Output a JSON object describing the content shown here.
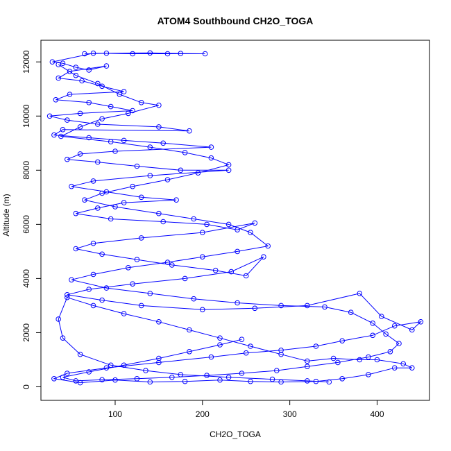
{
  "chart_data": {
    "type": "line",
    "title": "ATOM4 Southbound CH2O_TOGA",
    "xlabel": "CH2O_TOGA",
    "ylabel": "Altitude (m)",
    "xlim": [
      15,
      460
    ],
    "ylim": [
      -500,
      12800
    ],
    "xticks": [
      100,
      200,
      300,
      400
    ],
    "yticks": [
      0,
      2000,
      4000,
      6000,
      8000,
      10000,
      12000
    ],
    "grid": false,
    "legend": "none",
    "series_color": "#0000ff",
    "series": [
      {
        "values": [
          [
            65,
            12300
          ],
          [
            90,
            12320
          ],
          [
            120,
            12300
          ],
          [
            160,
            12300
          ],
          [
            203,
            12300
          ],
          [
            175,
            12310
          ],
          [
            140,
            12330
          ],
          [
            75,
            12320
          ],
          [
            28,
            12000
          ],
          [
            40,
            11950
          ],
          [
            55,
            11800
          ],
          [
            70,
            11700
          ],
          [
            90,
            11850
          ],
          [
            48,
            11650
          ],
          [
            35,
            11400
          ],
          [
            62,
            11300
          ],
          [
            85,
            11100
          ],
          [
            110,
            10900
          ],
          [
            48,
            10800
          ],
          [
            32,
            10600
          ],
          [
            70,
            10500
          ],
          [
            95,
            10350
          ],
          [
            120,
            10200
          ],
          [
            60,
            10100
          ],
          [
            25,
            10000
          ],
          [
            45,
            9850
          ],
          [
            80,
            9700
          ],
          [
            150,
            9600
          ],
          [
            185,
            9450
          ],
          [
            40,
            9500
          ],
          [
            30,
            9300
          ],
          [
            70,
            9200
          ],
          [
            110,
            9100
          ],
          [
            155,
            9000
          ],
          [
            210,
            8850
          ],
          [
            100,
            8700
          ],
          [
            60,
            8600
          ],
          [
            45,
            8400
          ],
          [
            80,
            8300
          ],
          [
            125,
            8150
          ],
          [
            175,
            8000
          ],
          [
            230,
            8000
          ],
          [
            140,
            7800
          ],
          [
            75,
            7600
          ],
          [
            50,
            7400
          ],
          [
            90,
            7200
          ],
          [
            130,
            7000
          ],
          [
            170,
            6900
          ],
          [
            110,
            6800
          ],
          [
            80,
            6600
          ],
          [
            55,
            6400
          ],
          [
            95,
            6200
          ],
          [
            155,
            6100
          ],
          [
            205,
            6000
          ],
          [
            240,
            5800
          ],
          [
            260,
            6050
          ],
          [
            200,
            5700
          ],
          [
            130,
            5500
          ],
          [
            75,
            5300
          ],
          [
            55,
            5100
          ],
          [
            85,
            4900
          ],
          [
            125,
            4700
          ],
          [
            165,
            4500
          ],
          [
            215,
            4300
          ],
          [
            250,
            4100
          ],
          [
            270,
            4800
          ],
          [
            233,
            4250
          ],
          [
            180,
            4000
          ],
          [
            120,
            3800
          ],
          [
            70,
            3600
          ],
          [
            45,
            3400
          ],
          [
            85,
            3200
          ],
          [
            130,
            3000
          ],
          [
            200,
            2850
          ],
          [
            260,
            2900
          ],
          [
            320,
            3000
          ],
          [
            380,
            3450
          ],
          [
            405,
            2600
          ],
          [
            440,
            2100
          ],
          [
            450,
            2400
          ],
          [
            420,
            2250
          ],
          [
            395,
            1900
          ],
          [
            360,
            1700
          ],
          [
            330,
            1500
          ],
          [
            290,
            1350
          ],
          [
            250,
            1250
          ],
          [
            210,
            1100
          ],
          [
            150,
            900
          ],
          [
            90,
            700
          ],
          [
            45,
            500
          ],
          [
            30,
            300
          ],
          [
            60,
            150
          ],
          [
            100,
            250
          ],
          [
            140,
            180
          ],
          [
            180,
            200
          ],
          [
            220,
            250
          ],
          [
            255,
            200
          ],
          [
            290,
            180
          ],
          [
            330,
            200
          ],
          [
            360,
            300
          ],
          [
            390,
            450
          ],
          [
            420,
            700
          ],
          [
            440,
            700
          ],
          [
            430,
            850
          ],
          [
            400,
            1000
          ],
          [
            380,
            1000
          ],
          [
            350,
            1050
          ],
          [
            320,
            950
          ],
          [
            290,
            1200
          ],
          [
            255,
            1500
          ],
          [
            220,
            1800
          ],
          [
            185,
            2100
          ],
          [
            150,
            2400
          ],
          [
            110,
            2700
          ],
          [
            75,
            3000
          ],
          [
            45,
            3300
          ],
          [
            35,
            2500
          ],
          [
            40,
            1800
          ],
          [
            60,
            1200
          ],
          [
            95,
            800
          ],
          [
            135,
            600
          ],
          [
            175,
            450
          ],
          [
            230,
            350
          ],
          [
            280,
            280
          ],
          [
            320,
            220
          ],
          [
            345,
            180
          ]
        ]
      },
      {
        "values": [
          [
            35,
            11900
          ],
          [
            55,
            11500
          ],
          [
            80,
            11200
          ],
          [
            105,
            10800
          ],
          [
            130,
            10500
          ],
          [
            150,
            10400
          ],
          [
            115,
            10100
          ],
          [
            85,
            9900
          ],
          [
            60,
            9600
          ],
          [
            38,
            9250
          ],
          [
            95,
            9050
          ],
          [
            140,
            8850
          ],
          [
            180,
            8650
          ],
          [
            210,
            8450
          ],
          [
            230,
            8200
          ],
          [
            195,
            7900
          ],
          [
            160,
            7650
          ],
          [
            120,
            7400
          ],
          [
            85,
            7150
          ],
          [
            65,
            6900
          ],
          [
            100,
            6650
          ],
          [
            150,
            6400
          ],
          [
            190,
            6200
          ],
          [
            230,
            6000
          ],
          [
            255,
            5700
          ],
          [
            275,
            5200
          ],
          [
            240,
            5000
          ],
          [
            200,
            4800
          ],
          [
            160,
            4600
          ],
          [
            115,
            4400
          ],
          [
            75,
            4150
          ],
          [
            50,
            3950
          ],
          [
            90,
            3650
          ],
          [
            140,
            3450
          ],
          [
            190,
            3250
          ],
          [
            240,
            3100
          ],
          [
            290,
            3000
          ],
          [
            340,
            2950
          ],
          [
            370,
            2750
          ],
          [
            395,
            2350
          ],
          [
            410,
            1950
          ],
          [
            425,
            1600
          ],
          [
            415,
            1300
          ],
          [
            390,
            1100
          ],
          [
            355,
            900
          ],
          [
            320,
            750
          ],
          [
            285,
            600
          ],
          [
            245,
            500
          ],
          [
            205,
            420
          ],
          [
            165,
            350
          ],
          [
            125,
            300
          ],
          [
            85,
            260
          ],
          [
            55,
            220
          ],
          [
            40,
            350
          ],
          [
            70,
            550
          ],
          [
            110,
            800
          ],
          [
            150,
            1050
          ],
          [
            185,
            1300
          ],
          [
            220,
            1550
          ],
          [
            245,
            1750
          ]
        ]
      }
    ]
  }
}
